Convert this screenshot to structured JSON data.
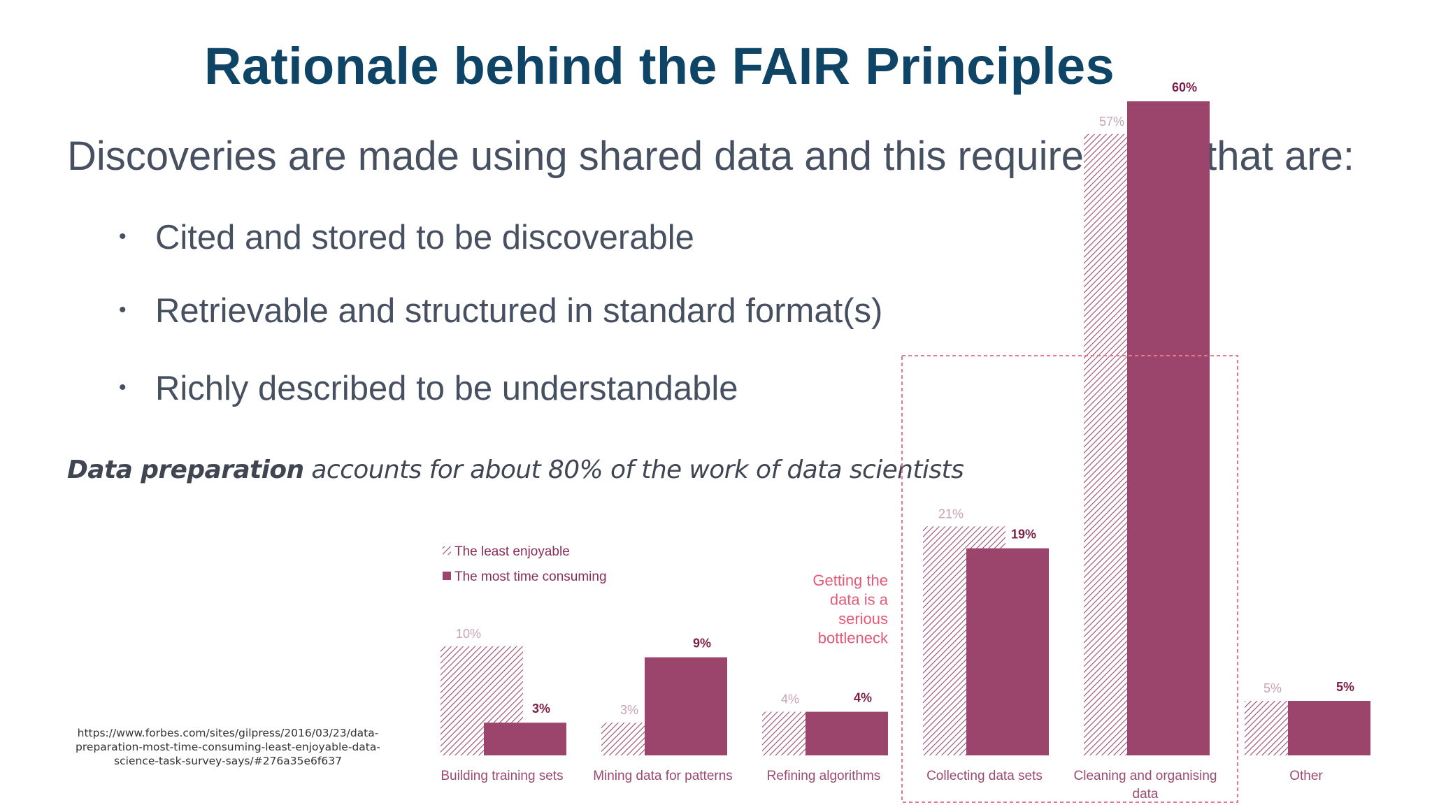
{
  "slide": {
    "title": "Rationale behind the FAIR Principles",
    "subtitle": "Discoveries are made using shared data and this requires data that are:",
    "bullets": [
      "Cited and stored to be discoverable",
      "Retrievable and structured in standard format(s)",
      "Richly described to be understandable"
    ],
    "note_bold": "Data preparation",
    "note_rest": " accounts for about 80% of the work of data scientists",
    "source": "https://www.forbes.com/sites/gilpress/2016/03/23/data-preparation-most-time-consuming-least-enjoyable-data-science-task-survey-says/#276a35e6f637"
  },
  "chart_data": {
    "type": "bar",
    "categories": [
      "Building training sets",
      "Mining data for patterns",
      "Refining algorithms",
      "Collecting data sets",
      "Cleaning and organising data",
      "Other"
    ],
    "category_lines": [
      [
        "Building training sets"
      ],
      [
        "Mining data for patterns"
      ],
      [
        "Refining algorithms"
      ],
      [
        "Collecting data sets"
      ],
      [
        "Cleaning and organising",
        "data"
      ],
      [
        "Other"
      ]
    ],
    "series": [
      {
        "name": "The least enjoyable",
        "values": [
          10,
          3,
          4,
          21,
          57,
          5
        ],
        "labels": [
          "10%",
          "3%",
          "4%",
          "21%",
          "57%",
          "5%"
        ]
      },
      {
        "name": "The most time consuming",
        "values": [
          3,
          9,
          4,
          19,
          60,
          5
        ],
        "labels": [
          "3%",
          "9%",
          "4%",
          "19%",
          "60%",
          "5%"
        ]
      }
    ],
    "annotation": [
      "Getting the",
      "data is a",
      "serious",
      "bottleneck"
    ],
    "highlight_categories": [
      "Collecting data sets",
      "Cleaning and organising data"
    ],
    "colors": {
      "hatched": "#9b4a6e",
      "solid": "#9b456d",
      "highlight_box": "#e9788f"
    },
    "legend_position": "top-left"
  }
}
